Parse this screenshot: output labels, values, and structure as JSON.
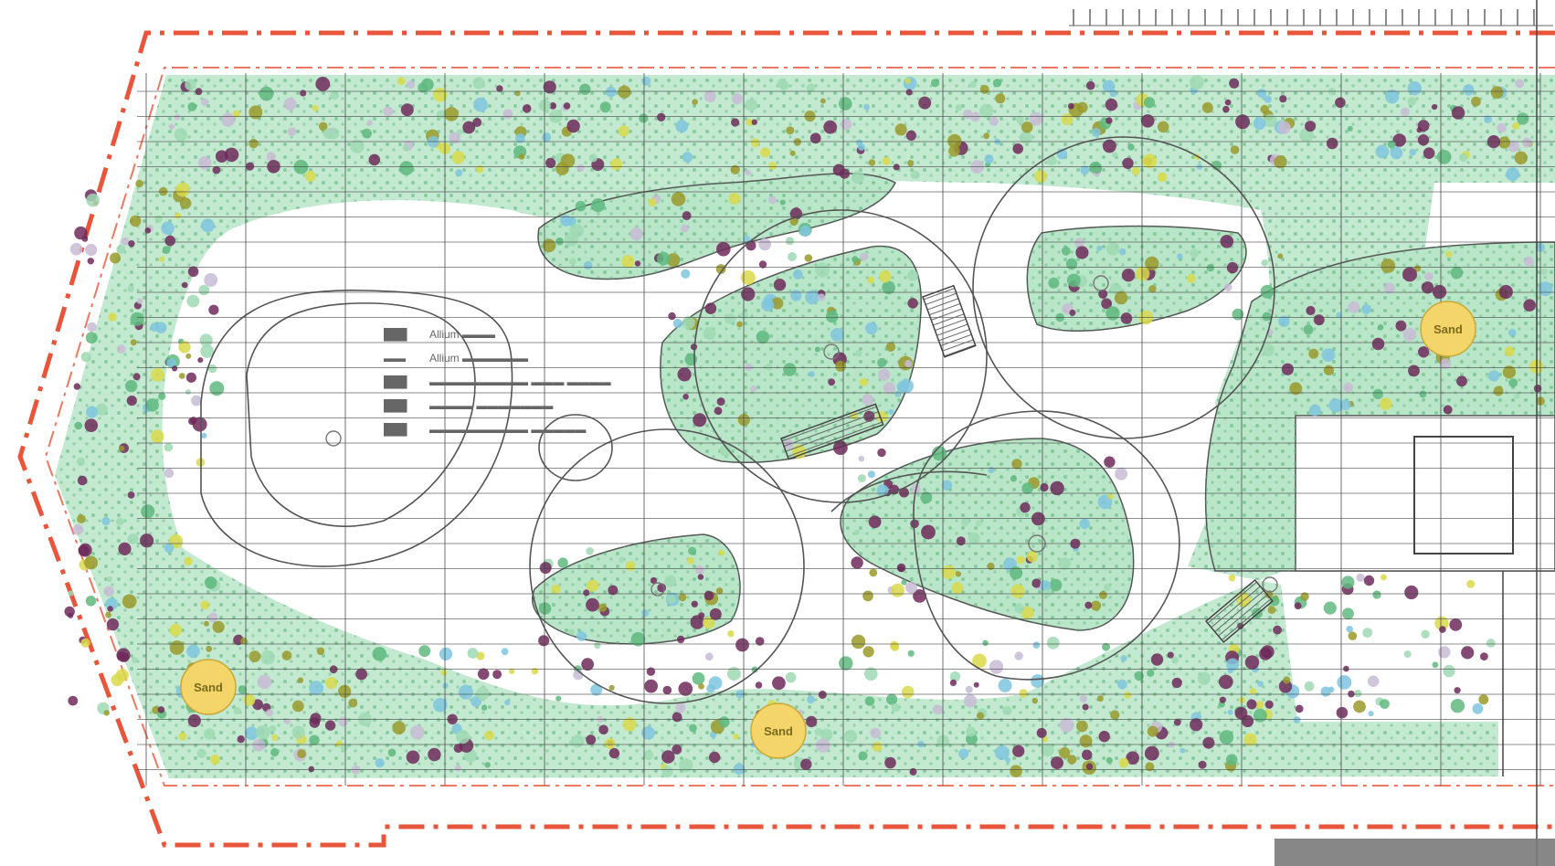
{
  "plan": {
    "colors": {
      "background": "#ffffff",
      "boundary_red": "#e8553a",
      "grid": "#444444",
      "outline": "#555555",
      "planting_green": "#9fd9b4",
      "planting_green_dark": "#5fb97f",
      "planting_purple": "#6e2a5c",
      "planting_lilac": "#c8bcd6",
      "planting_blue": "#7fc6de",
      "planting_olive": "#9a9a2a",
      "planting_yellow": "#d9d94a",
      "tree_yellow": "#f3d56a",
      "paving_dark": "#7a7a7a"
    },
    "legend": [
      {
        "code": "███",
        "label": "Allium ▬▬▬"
      },
      {
        "code": "▬▬",
        "label": "Allium ▬▬▬▬▬▬"
      },
      {
        "code": "███",
        "label": "▬▬▬▬▬▬▬▬▬ ▬▬▬ ▬▬▬▬"
      },
      {
        "code": "███",
        "label": "▬▬▬▬ ▬▬▬▬▬▬▬"
      },
      {
        "code": "███",
        "label": "▬▬▬▬▬▬▬▬▬ ▬▬▬▬▬"
      }
    ],
    "tree_tags": [
      "Sand",
      "Sand",
      "Sand"
    ],
    "icons": [
      "bench-icon",
      "bench-icon",
      "bench-icon"
    ]
  }
}
